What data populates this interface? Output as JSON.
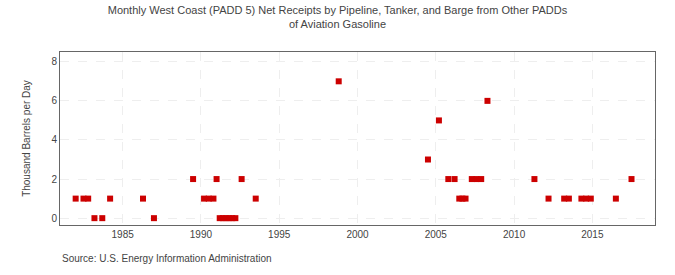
{
  "chart_data": {
    "type": "scatter",
    "title": "Monthly West Coast (PADD 5) Net Receipts by Pipeline, Tanker, and Barge from Other PADDs\nof Aviation Gasoline",
    "ylabel": "Thousand Barrels per Day",
    "annotations": [
      "Source: U.S. Energy Information Administration"
    ],
    "color": "#cc0000",
    "marker": "square",
    "grid": true,
    "xlim": [
      1981,
      2019
    ],
    "ylim": [
      -0.35,
      8.5
    ],
    "xticks": [
      1985,
      1990,
      1995,
      2000,
      2005,
      2010,
      2015
    ],
    "yticks": [
      0,
      2,
      4,
      6,
      8
    ],
    "x": [
      1982.0,
      1982.5,
      1982.8,
      1983.2,
      1983.7,
      1984.2,
      1986.3,
      1987.0,
      1989.5,
      1990.2,
      1990.5,
      1990.8,
      1991.2,
      1991.4,
      1991.6,
      1991.8,
      1992.0,
      1992.2,
      1991.0,
      1992.6,
      1993.5,
      1998.8,
      2004.5,
      2005.2,
      2005.8,
      2006.2,
      2006.5,
      2006.7,
      2006.9,
      2007.3,
      2007.6,
      2007.9,
      2008.3,
      2011.3,
      2012.2,
      2013.2,
      2013.5,
      2014.3,
      2014.6,
      2014.9,
      2016.5,
      2017.5
    ],
    "values": [
      1.0,
      1.0,
      1.0,
      0.0,
      0.0,
      1.0,
      1.0,
      0.0,
      2.0,
      1.0,
      1.0,
      1.0,
      0.0,
      0.0,
      0.0,
      0.0,
      0.0,
      0.0,
      2.0,
      2.0,
      1.0,
      7.0,
      3.0,
      5.0,
      2.0,
      2.0,
      1.0,
      1.0,
      1.0,
      2.0,
      2.0,
      2.0,
      6.0,
      2.0,
      1.0,
      1.0,
      1.0,
      1.0,
      1.0,
      1.0,
      1.0,
      2.0
    ]
  }
}
